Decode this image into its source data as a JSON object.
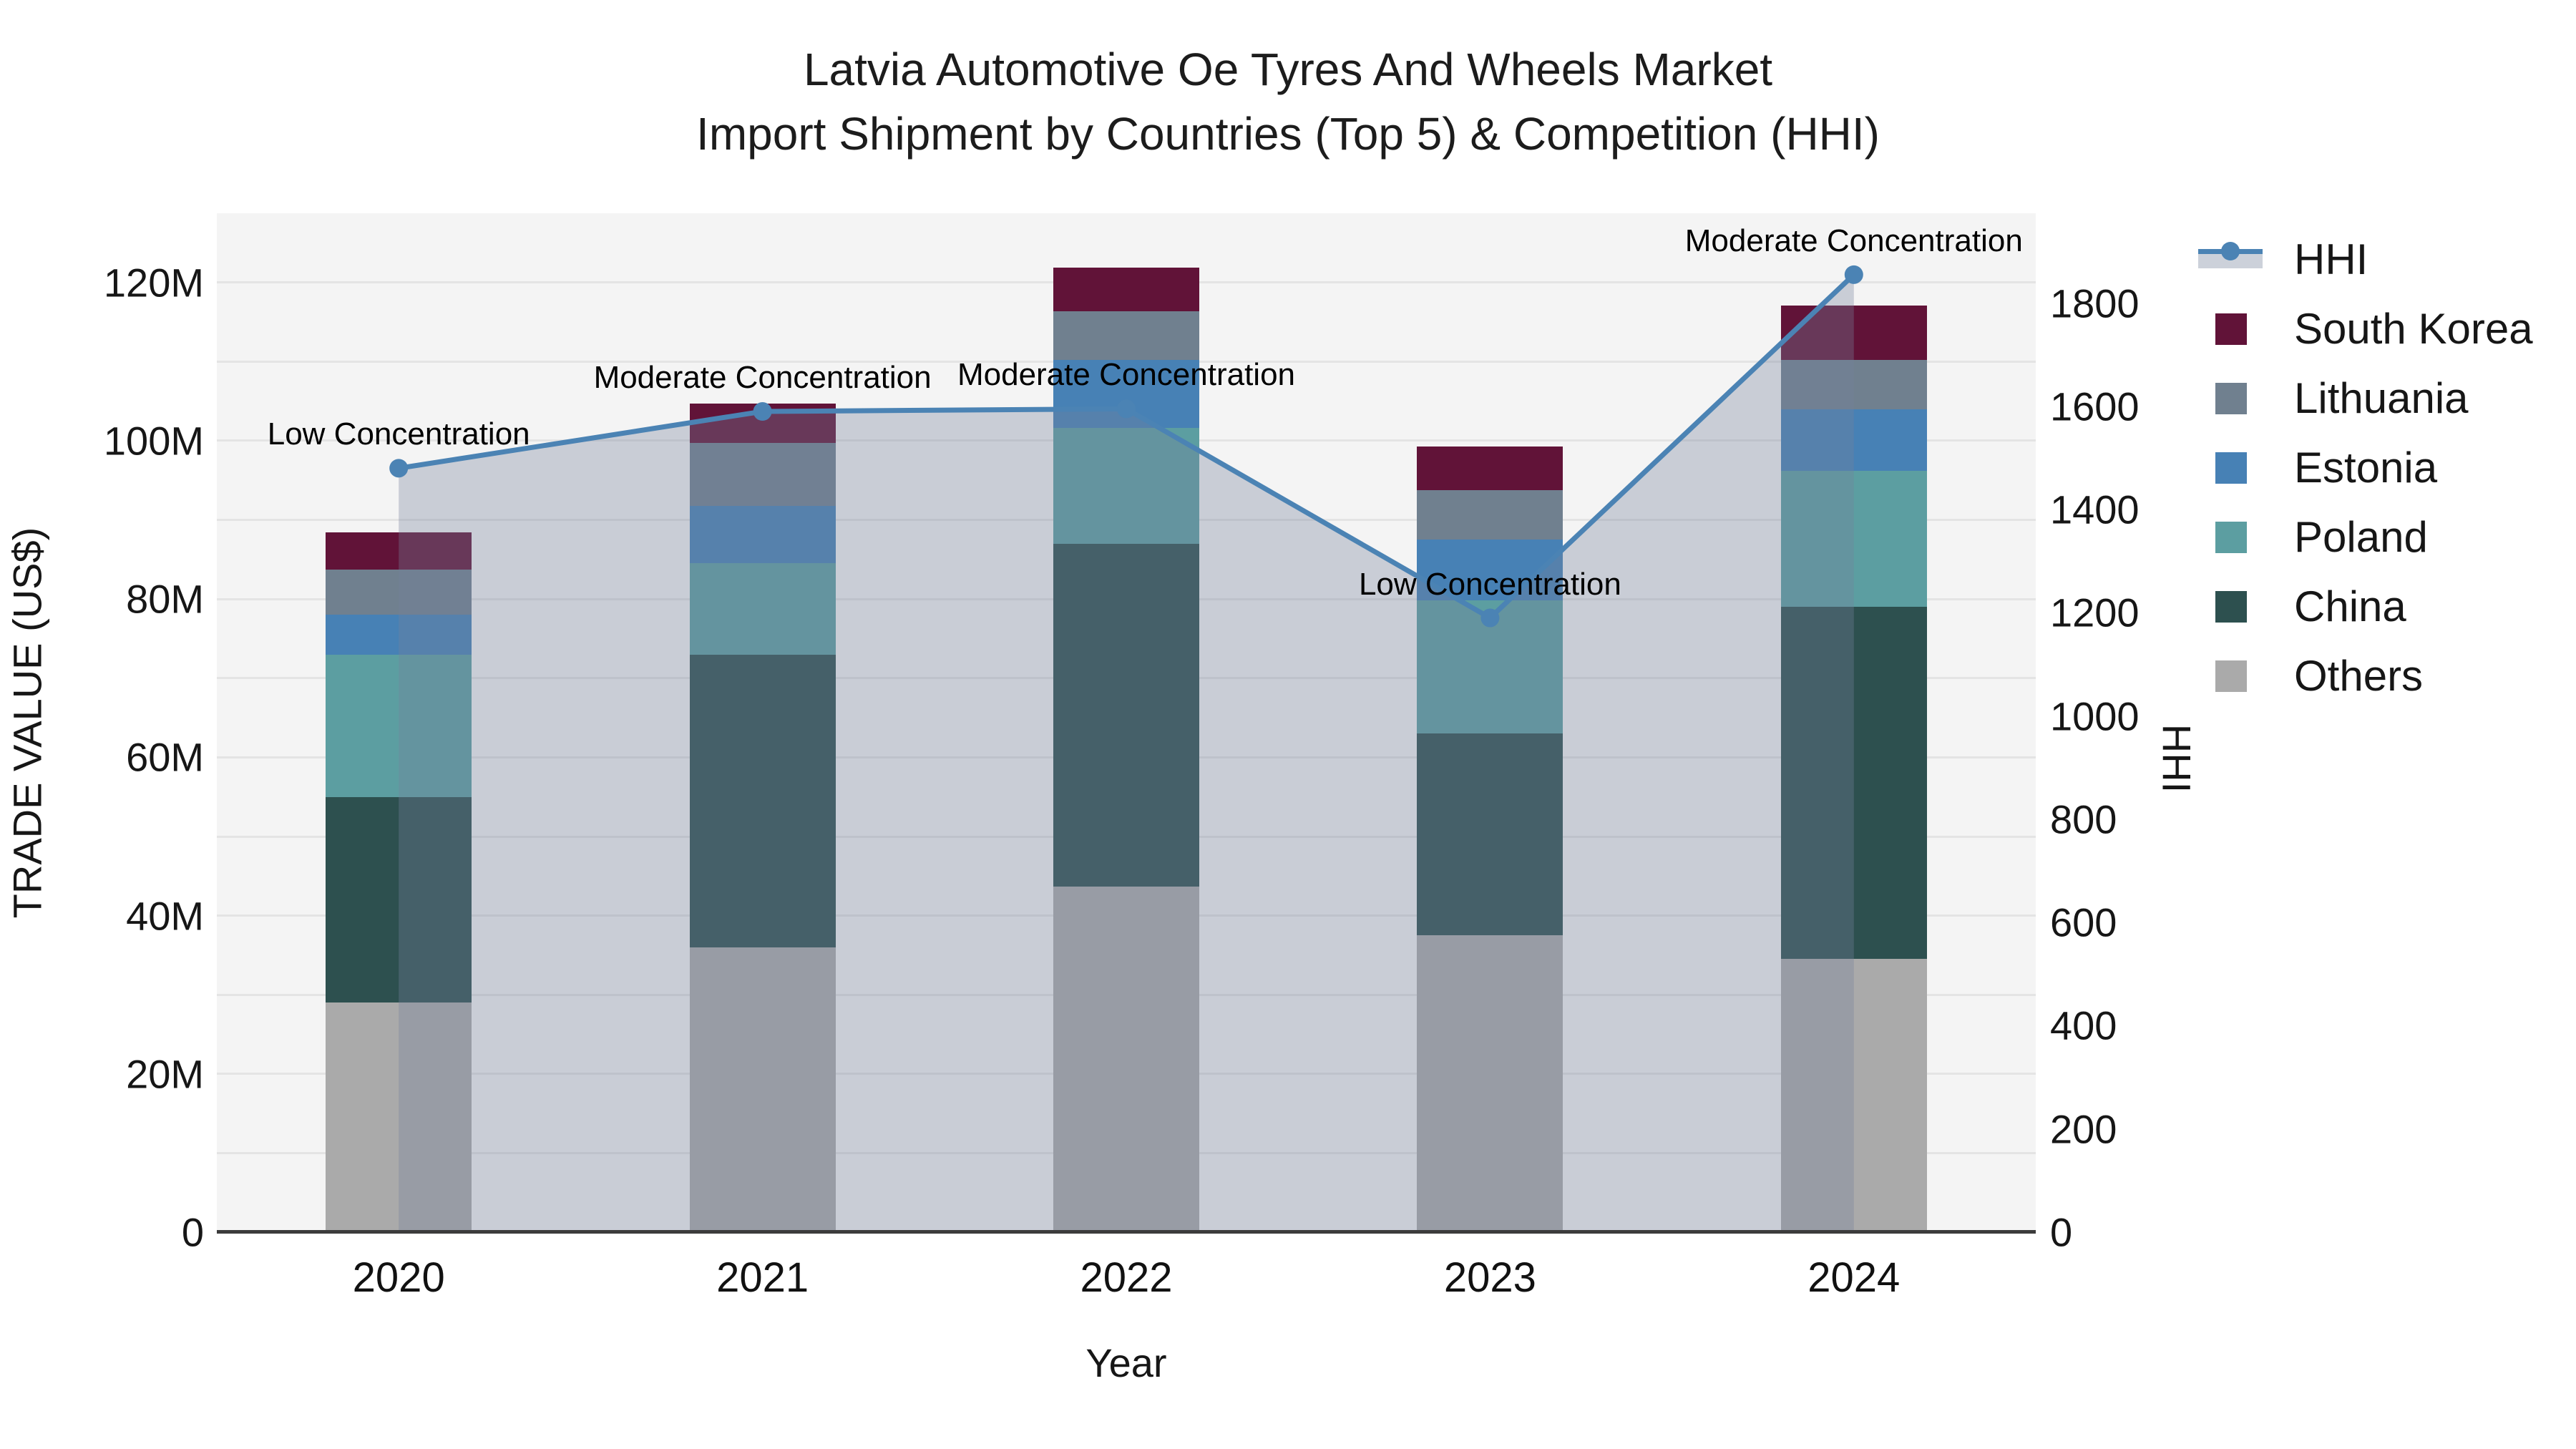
{
  "title": {
    "line1": "Latvia Automotive Oe Tyres And Wheels Market",
    "line2": "Import Shipment by Countries (Top 5) & Competition (HHI)"
  },
  "chart_data": {
    "type": "bar+line",
    "categories": [
      "2020",
      "2021",
      "2022",
      "2023",
      "2024"
    ],
    "bar_unit": "M US$",
    "series": [
      {
        "name": "Others",
        "color": "#aaaaaa",
        "values": [
          29.0,
          36.0,
          43.7,
          37.5,
          34.5
        ]
      },
      {
        "name": "China",
        "color": "#2d504f",
        "values": [
          26.0,
          37.0,
          43.3,
          25.5,
          44.5
        ]
      },
      {
        "name": "Poland",
        "color": "#5c9ea1",
        "values": [
          18.0,
          11.5,
          14.6,
          16.8,
          17.2
        ]
      },
      {
        "name": "Estonia",
        "color": "#4781b5",
        "values": [
          5.0,
          7.3,
          8.6,
          7.7,
          7.8
        ]
      },
      {
        "name": "Lithuania",
        "color": "#70808f",
        "values": [
          5.7,
          7.9,
          6.2,
          6.3,
          6.2
        ]
      },
      {
        "name": "South Korea",
        "color": "#611338",
        "values": [
          4.7,
          5.0,
          5.5,
          5.5,
          6.9
        ]
      }
    ],
    "line_series": {
      "name": "HHI",
      "color": "#4b83b4",
      "fill_color": "rgba(116,128,155,0.34)",
      "values": [
        1480,
        1590,
        1595,
        1190,
        1855
      ]
    },
    "annotations": [
      {
        "category_index": 0,
        "text": "Low Concentration"
      },
      {
        "category_index": 1,
        "text": "Moderate Concentration"
      },
      {
        "category_index": 2,
        "text": "Moderate Concentration"
      },
      {
        "category_index": 3,
        "text": "Low Concentration"
      },
      {
        "category_index": 4,
        "text": "Moderate Concentration"
      }
    ],
    "y_left": {
      "title": "TRADE VALUE (US$)",
      "tick_values": [
        0,
        20,
        40,
        60,
        80,
        100,
        120
      ],
      "tick_labels": [
        "0",
        "20M",
        "40M",
        "60M",
        "80M",
        "100M",
        "120M"
      ],
      "ylim": [
        0,
        128.75
      ],
      "grid_step": 10
    },
    "y_right": {
      "title": "HHI",
      "tick_values": [
        0,
        200,
        400,
        600,
        800,
        1000,
        1200,
        1400,
        1600,
        1800
      ],
      "tick_labels": [
        "0",
        "200",
        "400",
        "600",
        "800",
        "1000",
        "1200",
        "1400",
        "1600",
        "1800"
      ],
      "ylim": [
        0,
        1974
      ]
    },
    "x": {
      "title": "Year"
    },
    "legend": [
      {
        "label": "HHI",
        "kind": "line"
      },
      {
        "label": "South Korea",
        "kind": "swatch",
        "color": "#611338"
      },
      {
        "label": "Lithuania",
        "kind": "swatch",
        "color": "#70808f"
      },
      {
        "label": "Estonia",
        "kind": "swatch",
        "color": "#4781b5"
      },
      {
        "label": "Poland",
        "kind": "swatch",
        "color": "#5c9ea1"
      },
      {
        "label": "China",
        "kind": "swatch",
        "color": "#2d504f"
      },
      {
        "label": "Others",
        "kind": "swatch",
        "color": "#aaaaaa"
      }
    ],
    "colors": {
      "plot_background": "#f4f4f4",
      "grid": "#e4e4e4",
      "zeroline": "#3c3c3c",
      "text": "#1a1a1a",
      "legend_band": "#ccd1da"
    }
  }
}
